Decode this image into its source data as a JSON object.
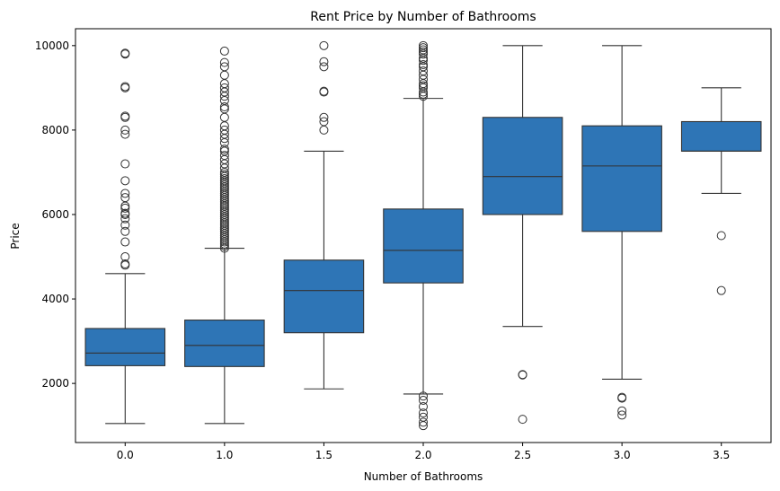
{
  "chart_data": {
    "type": "box",
    "title": "Rent Price by Number of Bathrooms",
    "xlabel": "Number of Bathrooms",
    "ylabel": "Price",
    "ylim": [
      600,
      10400
    ],
    "yticks": [
      2000,
      4000,
      6000,
      8000,
      10000
    ],
    "box_color": "#2e75b6",
    "line_color": "#333333",
    "grid": false,
    "categories": [
      "0.0",
      "1.0",
      "1.5",
      "2.0",
      "2.5",
      "3.0",
      "3.5"
    ],
    "boxes": [
      {
        "category": "0.0",
        "whisker_low": 1050,
        "q1": 2420,
        "median": 2720,
        "q3": 3300,
        "whisker_high": 4600,
        "outliers": [
          4800,
          4830,
          5000,
          5350,
          5600,
          5750,
          5900,
          6000,
          6030,
          6150,
          6200,
          6400,
          6500,
          6800,
          7200,
          7900,
          8000,
          8300,
          8330,
          9000,
          9030,
          9800,
          9820
        ]
      },
      {
        "category": "1.0",
        "whisker_low": 1050,
        "q1": 2400,
        "median": 2900,
        "q3": 3500,
        "whisker_high": 5200,
        "outliers": [
          5200,
          5250,
          5300,
          5350,
          5400,
          5450,
          5500,
          5550,
          5600,
          5650,
          5700,
          5750,
          5800,
          5850,
          5900,
          5950,
          6000,
          6050,
          6100,
          6150,
          6200,
          6250,
          6300,
          6350,
          6400,
          6450,
          6500,
          6550,
          6600,
          6650,
          6700,
          6750,
          6800,
          6850,
          6900,
          6950,
          7000,
          7100,
          7200,
          7300,
          7400,
          7500,
          7550,
          7700,
          7800,
          7900,
          8000,
          8100,
          8300,
          8500,
          8550,
          8700,
          8800,
          8900,
          9000,
          9100,
          9300,
          9500,
          9600,
          9870
        ]
      },
      {
        "category": "1.5",
        "whisker_low": 1870,
        "q1": 3200,
        "median": 4200,
        "q3": 4920,
        "whisker_high": 7500,
        "outliers": [
          8000,
          8200,
          8300,
          8900,
          8920,
          9500,
          9620,
          10000
        ]
      },
      {
        "category": "2.0",
        "whisker_low": 1750,
        "q1": 4380,
        "median": 5150,
        "q3": 6130,
        "whisker_high": 8750,
        "outliers": [
          1000,
          1080,
          1200,
          1300,
          1450,
          1600,
          1700,
          8800,
          8850,
          8900,
          9000,
          9050,
          9100,
          9200,
          9300,
          9400,
          9500,
          9550,
          9650,
          9700,
          9800,
          9850,
          9900,
          9950,
          10000
        ]
      },
      {
        "category": "2.5",
        "whisker_low": 3350,
        "q1": 6000,
        "median": 6900,
        "q3": 8300,
        "whisker_high": 10000,
        "outliers": [
          1150,
          2200,
          2210
        ]
      },
      {
        "category": "3.0",
        "whisker_low": 2100,
        "q1": 5600,
        "median": 7150,
        "q3": 8100,
        "whisker_high": 10000,
        "outliers": [
          1250,
          1350,
          1650,
          1670
        ]
      },
      {
        "category": "3.5",
        "whisker_low": 6500,
        "q1": 7500,
        "median": 7500,
        "q3": 8200,
        "whisker_high": 9000,
        "outliers": [
          4200,
          5500
        ]
      }
    ]
  }
}
